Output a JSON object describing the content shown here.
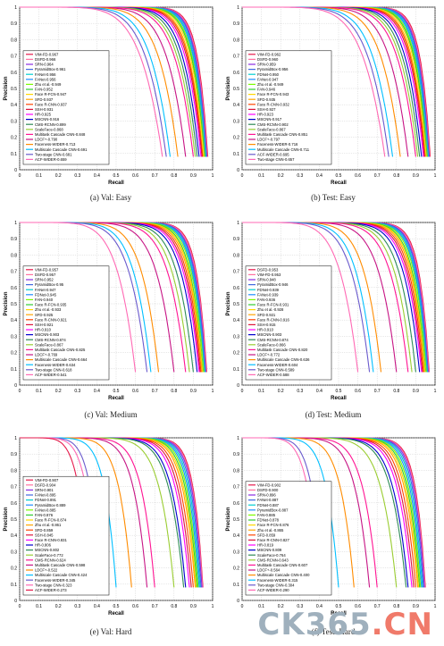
{
  "colors": {
    "palette": [
      "#e6194b",
      "#ff6fa0",
      "#8a2be2",
      "#4169e1",
      "#00ced1",
      "#1e90ff",
      "#7cfc00",
      "#32cd32",
      "#ffd700",
      "#ffa500",
      "#ff4500",
      "#dc143c",
      "#ff00ff",
      "#0000cd",
      "#2e8b57",
      "#9acd32",
      "#ff1493",
      "#c71585",
      "#ff8c00",
      "#00bfff",
      "#6a5acd",
      "#ff69b4"
    ]
  },
  "watermark": {
    "part1": "CK365",
    "part2": ".CN"
  },
  "chart_data": [
    {
      "type": "line",
      "caption": "(a)  Val: Easy",
      "xlabel": "Recall",
      "ylabel": "Precision",
      "xlim": [
        0,
        1
      ],
      "ylim": [
        0,
        1
      ],
      "xticks": [
        "0",
        "0.1",
        "0.2",
        "0.3",
        "0.4",
        "0.5",
        "0.6",
        "0.7",
        "0.8",
        "0.9",
        "1"
      ],
      "yticks": [
        "0",
        "0.1",
        "0.2",
        "0.3",
        "0.4",
        "0.5",
        "0.6",
        "0.7",
        "0.8",
        "0.9",
        "1"
      ],
      "grid": true,
      "legend_position": "bottom-left",
      "legend": [
        "VIM-FD-0.967",
        "DSFD-0.966",
        "SRN-0.964",
        "PyramidBox-0.961",
        "FANet-0.956",
        "FANet-0.956",
        "Zhu et al.-0.949",
        "FAN-0.952",
        "Face R-FCN-0.947",
        "SFD-0.937",
        "Face R-CNN-0.937",
        "SSH-0.931",
        "HR-0.925",
        "MSCNN-0.916",
        "CMS-RCNN-0.899",
        "ScaleFace-0.868",
        "Multitask Cascade CNN-0.848",
        "LDCF+-0.790",
        "Faceness-WIDER-0.713",
        "Multiscale Cascade CNN-0.691",
        "Two-stage CNN-0.681",
        "ACF-WIDER-0.659"
      ],
      "series_end_recall": [
        0.975,
        0.972,
        0.97,
        0.968,
        0.965,
        0.963,
        0.96,
        0.958,
        0.955,
        0.95,
        0.948,
        0.945,
        0.94,
        0.93,
        0.92,
        0.91,
        0.9,
        0.86,
        0.82,
        0.78,
        0.76,
        0.74
      ]
    },
    {
      "type": "line",
      "caption": "(b)  Test: Easy",
      "xlabel": "Recall",
      "ylabel": "Precision",
      "xlim": [
        0,
        1
      ],
      "ylim": [
        0,
        1
      ],
      "xticks": [
        "0",
        "0.1",
        "0.2",
        "0.3",
        "0.4",
        "0.5",
        "0.6",
        "0.7",
        "0.8",
        "0.9",
        "1"
      ],
      "yticks": [
        "0",
        "0.1",
        "0.2",
        "0.3",
        "0.4",
        "0.5",
        "0.6",
        "0.7",
        "0.8",
        "0.9",
        "1"
      ],
      "grid": true,
      "legend_position": "bottom-left",
      "legend": [
        "VIM-FD-0.962",
        "DSFD-0.960",
        "SRN-0.959",
        "PyramidBox-0.956",
        "FDNet-0.950",
        "FANet-0.947",
        "Zhu et al.-0.949",
        "FAN-0.946",
        "Face R-FCN-0.943",
        "SFD-0.935",
        "Face R-CNN-0.932",
        "SSH-0.927",
        "HR-0.923",
        "MSCNN-0.917",
        "CMS-RCNN-0.902",
        "ScaleFace-0.867",
        "Multitask Cascade CNN-0.851",
        "LDCF+-0.797",
        "Faceness-WIDER-0.716",
        "Multiscale Cascade CNN-0.711",
        "ACF-WIDER-0.695",
        "Two-stage CNN-0.657"
      ],
      "series_end_recall": [
        0.975,
        0.972,
        0.97,
        0.968,
        0.965,
        0.963,
        0.96,
        0.958,
        0.955,
        0.95,
        0.948,
        0.945,
        0.94,
        0.93,
        0.92,
        0.91,
        0.9,
        0.86,
        0.82,
        0.78,
        0.76,
        0.74
      ]
    },
    {
      "type": "line",
      "caption": "(c)  Val: Medium",
      "xlabel": "Recall",
      "ylabel": "Precision",
      "xlim": [
        0,
        1
      ],
      "ylim": [
        0,
        1
      ],
      "xticks": [
        "0",
        "0.1",
        "0.2",
        "0.3",
        "0.4",
        "0.5",
        "0.6",
        "0.7",
        "0.8",
        "0.9",
        "1"
      ],
      "yticks": [
        "0",
        "0.1",
        "0.2",
        "0.3",
        "0.4",
        "0.5",
        "0.6",
        "0.7",
        "0.8",
        "0.9",
        "1"
      ],
      "grid": true,
      "legend_position": "bottom-left",
      "legend": [
        "VIM-FD-0.957",
        "DSFD-0.957",
        "SRN-0.952",
        "PyramidBox-0.95",
        "FANet-0.947",
        "FDNet-0.945",
        "FAN-0.940",
        "Face R-FCN-0.935",
        "Zhu et al.-0.933",
        "SFD-0.925",
        "Face R-CNN-0.921",
        "SSH-0.921",
        "HR-0.910",
        "MSCNN-0.903",
        "CMS-RCNN-0.874",
        "ScaleFace-0.867",
        "Multitask Cascade CNN-0.825",
        "LDCF+-0.769",
        "Multiscale Cascade CNN-0.664",
        "Faceness-WIDER-0.634",
        "Two-stage CNN-0.618",
        "ACF-WIDER-0.541"
      ],
      "series_end_recall": [
        0.97,
        0.968,
        0.965,
        0.963,
        0.96,
        0.958,
        0.955,
        0.95,
        0.948,
        0.945,
        0.94,
        0.935,
        0.93,
        0.92,
        0.9,
        0.88,
        0.86,
        0.8,
        0.72,
        0.68,
        0.66,
        0.6
      ]
    },
    {
      "type": "line",
      "caption": "(d)  Test: Medium",
      "xlabel": "Recall",
      "ylabel": "Precision",
      "xlim": [
        0,
        1
      ],
      "ylim": [
        0,
        1
      ],
      "xticks": [
        "0",
        "0.1",
        "0.2",
        "0.3",
        "0.4",
        "0.5",
        "0.6",
        "0.7",
        "0.8",
        "0.9",
        "1"
      ],
      "yticks": [
        "0",
        "0.1",
        "0.2",
        "0.3",
        "0.4",
        "0.5",
        "0.6",
        "0.7",
        "0.8",
        "0.9",
        "1"
      ],
      "grid": true,
      "legend_position": "bottom-left",
      "legend": [
        "DSFD-0.953",
        "VIM-FD-0.953",
        "SRN-0.948",
        "PyramidBox-0.946",
        "FDNet-0.939",
        "FANet-0.939",
        "FAN-0.936",
        "Face R-FCN-0.931",
        "Zhu et al.-0.928",
        "SFD-0.921",
        "Face R-CNN-0.916",
        "SSH-0.915",
        "HR-0.910",
        "MSCNN-0.903",
        "CMS-RCNN-0.874",
        "ScaleFace-0.866",
        "Multitask Cascade CNN-0.820",
        "LDCF+-0.772",
        "Multiscale Cascade CNN-0.636",
        "Faceness-WIDER-0.604",
        "Two-stage CNN-0.589",
        "ACF-WIDER-0.588"
      ],
      "series_end_recall": [
        0.97,
        0.968,
        0.965,
        0.963,
        0.96,
        0.958,
        0.955,
        0.95,
        0.948,
        0.945,
        0.94,
        0.935,
        0.93,
        0.92,
        0.9,
        0.88,
        0.86,
        0.8,
        0.72,
        0.68,
        0.66,
        0.6
      ]
    },
    {
      "type": "line",
      "caption": "(e)  Val: Hard",
      "xlabel": "Recall",
      "ylabel": "Precision",
      "xlim": [
        0,
        1
      ],
      "ylim": [
        0,
        1
      ],
      "xticks": [
        "0",
        "0.1",
        "0.2",
        "0.3",
        "0.4",
        "0.5",
        "0.6",
        "0.7",
        "0.8",
        "0.9",
        "1"
      ],
      "yticks": [
        "0",
        "0.1",
        "0.2",
        "0.3",
        "0.4",
        "0.5",
        "0.6",
        "0.7",
        "0.8",
        "0.9",
        "1"
      ],
      "grid": true,
      "legend_position": "bottom-left",
      "legend": [
        "VIM-FD-0.907",
        "DSFD-0.904",
        "SRN-0.901",
        "FANet-0.895",
        "FDNet-0.891",
        "PyramidBox-0.889",
        "FANet-0.885",
        "FAN-0.876",
        "Face R-FCN-0.874",
        "Zhu et al.-0.861",
        "SFD-0.859",
        "SSH-0.845",
        "Face R-CNN-0.831",
        "HR-0.806",
        "MSCNN-0.802",
        "ScaleFace-0.772",
        "CMS-RCNN-0.624",
        "Multitask Cascade CNN-0.598",
        "LDCF+-0.522",
        "Multiscale Cascade CNN-0.424",
        "Faceness-WIDER-0.345",
        "Two-stage CNN-0.323",
        "ACF-WIDER-0.273"
      ],
      "series_end_recall": [
        0.95,
        0.948,
        0.945,
        0.94,
        0.935,
        0.93,
        0.925,
        0.92,
        0.915,
        0.91,
        0.9,
        0.89,
        0.88,
        0.86,
        0.85,
        0.8,
        0.7,
        0.66,
        0.58,
        0.5,
        0.42,
        0.4,
        0.36
      ]
    },
    {
      "type": "line",
      "caption": "(f)  Test: Hard",
      "xlabel": "Recall",
      "ylabel": "Precision",
      "xlim": [
        0,
        1
      ],
      "ylim": [
        0,
        1
      ],
      "xticks": [
        "0",
        "0.1",
        "0.2",
        "0.3",
        "0.4",
        "0.5",
        "0.6",
        "0.7",
        "0.8",
        "0.9",
        "1"
      ],
      "yticks": [
        "0",
        "0.1",
        "0.2",
        "0.3",
        "0.4",
        "0.5",
        "0.6",
        "0.7",
        "0.8",
        "0.9",
        "1"
      ],
      "grid": true,
      "legend_position": "bottom-left",
      "legend": [
        "VIM-FD-0.902",
        "DSFD-0.900",
        "SRN-0.896",
        "FANet-0.887",
        "FDNet-0.887",
        "PyramidBox-0.887",
        "FAN-0.885",
        "FDNet-0.878",
        "Face R-FCN-0.876",
        "Zhu et al.-0.865",
        "SFD-0.859",
        "Face R-CNN-0.827",
        "HR-0.819",
        "MSCNN-0.809",
        "ScaleFace-0.764",
        "CMS-RCNN-0.643",
        "Multitask Cascade CNN-0.607",
        "LDCF+-0.564",
        "Multiscale Cascade CNN-0.400",
        "Faceness-WIDER-0.315",
        "Two-stage CNN-0.304",
        "ACF-WIDER-0.290"
      ],
      "series_end_recall": [
        0.95,
        0.948,
        0.945,
        0.94,
        0.935,
        0.93,
        0.925,
        0.92,
        0.915,
        0.91,
        0.9,
        0.89,
        0.88,
        0.86,
        0.85,
        0.8,
        0.7,
        0.66,
        0.58,
        0.5,
        0.42,
        0.4
      ]
    }
  ]
}
